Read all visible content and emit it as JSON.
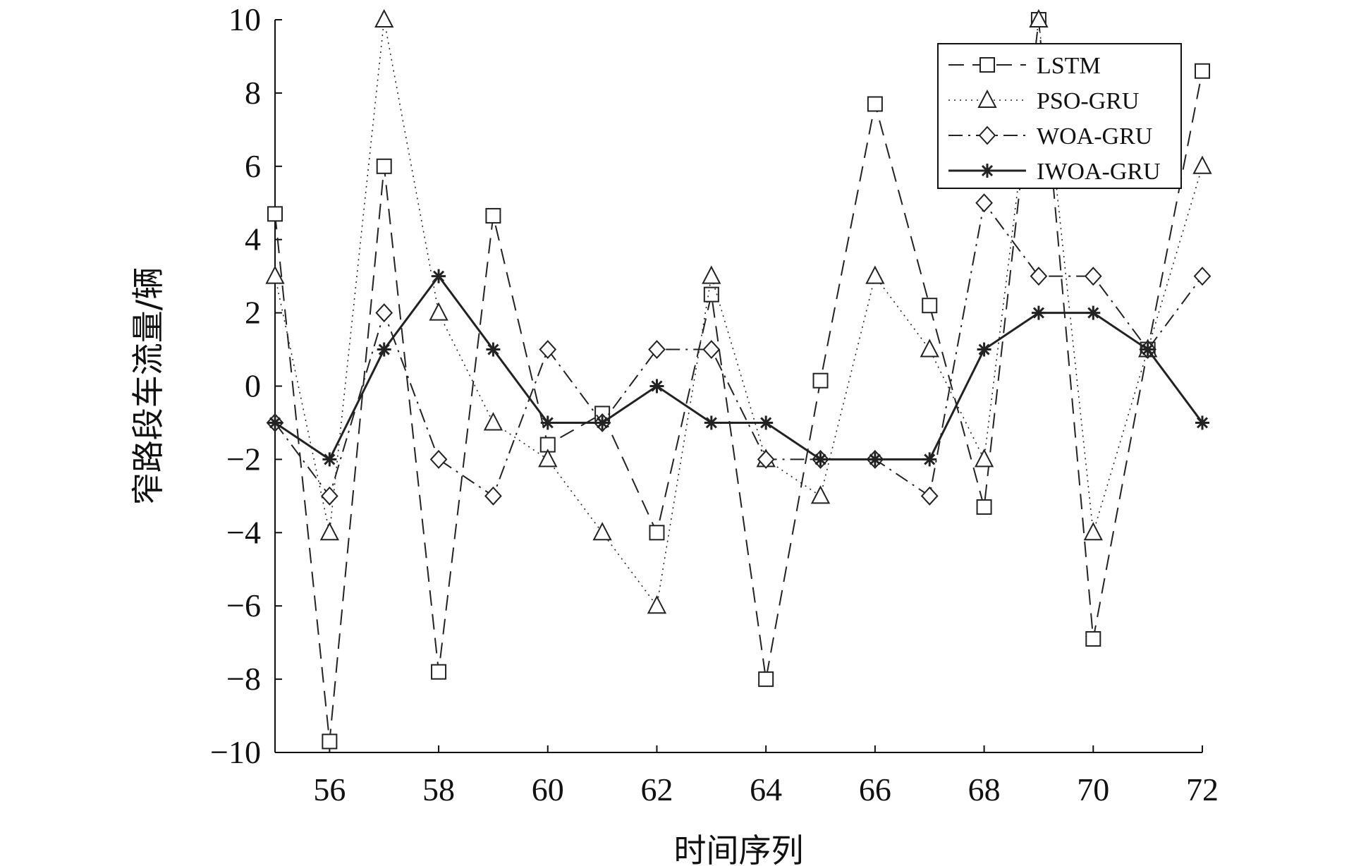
{
  "chart_data": {
    "type": "line",
    "title": "",
    "xlabel": "时间序列",
    "ylabel": "窄路段车流量/辆",
    "xlim": [
      55,
      72
    ],
    "ylim": [
      -10,
      10
    ],
    "xticks": [
      56,
      58,
      60,
      62,
      64,
      66,
      68,
      70,
      72
    ],
    "yticks": [
      10,
      8,
      6,
      4,
      2,
      0,
      -2,
      -4,
      -6,
      -8,
      -10
    ],
    "ytick_labels": [
      "10",
      "8",
      "6",
      "4",
      "2",
      "0",
      "−2",
      "−4",
      "−6",
      "−8",
      "−10"
    ],
    "grid": false,
    "legend_position": "top-right",
    "x": [
      55,
      56,
      57,
      58,
      59,
      60,
      61,
      62,
      63,
      64,
      65,
      66,
      67,
      68,
      69,
      70,
      71,
      72
    ],
    "series": [
      {
        "name": "LSTM",
        "values": [
          4.7,
          -9.7,
          6.0,
          -7.8,
          4.65,
          -1.6,
          -0.75,
          -4.0,
          2.5,
          -8.0,
          0.15,
          7.7,
          2.2,
          -3.3,
          10.0,
          -6.9,
          1.0,
          8.6
        ],
        "style": "dashed",
        "marker": "square"
      },
      {
        "name": "PSO-GRU",
        "values": [
          3.0,
          -4.0,
          10.0,
          2.0,
          -1.0,
          -2.0,
          -4.0,
          -6.0,
          3.0,
          -2.0,
          -3.0,
          3.0,
          1.0,
          -2.0,
          10.0,
          -4.0,
          1.0,
          6.0
        ],
        "style": "dotted",
        "marker": "triangle"
      },
      {
        "name": "WOA-GRU",
        "values": [
          -1.0,
          -3.0,
          2.0,
          -2.0,
          -3.0,
          1.0,
          -1.0,
          1.0,
          1.0,
          -2.0,
          -2.0,
          -2.0,
          -3.0,
          5.0,
          3.0,
          3.0,
          1.0,
          3.0
        ],
        "style": "dashdot",
        "marker": "diamond"
      },
      {
        "name": "IWOA-GRU",
        "values": [
          -1.0,
          -2.0,
          1.0,
          3.0,
          1.0,
          -1.0,
          -1.0,
          0.0,
          -1.0,
          -1.0,
          -2.0,
          -2.0,
          -2.0,
          1.0,
          2.0,
          2.0,
          1.0,
          -1.0
        ],
        "style": "solid",
        "marker": "asterisk"
      }
    ],
    "colors": {
      "line": "#222222",
      "marker_fill": "#ffffff"
    }
  }
}
